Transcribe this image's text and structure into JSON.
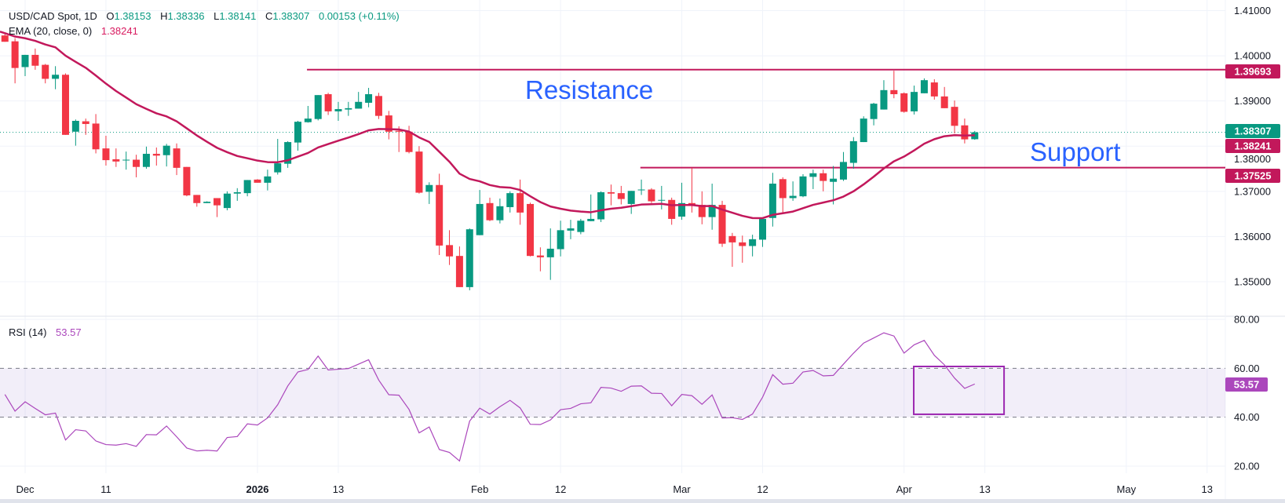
{
  "legend": {
    "symbol": "USD/CAD Spot, 1D",
    "o_label": "O",
    "o_value": "1.38153",
    "h_label": "H",
    "h_value": "1.38336",
    "l_label": "L",
    "l_value": "1.38141",
    "c_label": "C",
    "c_value": "1.38307",
    "change": "0.00153 (+0.11%)",
    "ema_label": "EMA (20, close, 0)",
    "ema_value": "1.38241",
    "rsi_label": "RSI (14)",
    "rsi_value": "53.57"
  },
  "annotations": {
    "resistance_text": "Resistance",
    "support_text": "Support"
  },
  "colors": {
    "up": "#089981",
    "down": "#f23645",
    "ema": "#c2185b",
    "rsi": "#ab47bc",
    "level": "#c2185b",
    "label_text": "#2962ff",
    "rsi_box": "#9c27b0",
    "grid": "#f0f3fa"
  },
  "chart_data": {
    "type": "candlestick",
    "title": "USD/CAD Spot, 1D",
    "price_axis": {
      "ylim": [
        1.341,
        1.4123
      ],
      "ticks": [
        "1.41000",
        "1.40000",
        "1.39000",
        "1.38000",
        "1.37000",
        "1.36000",
        "1.35000"
      ],
      "tick_values": [
        1.41,
        1.4,
        1.39,
        1.38,
        1.37,
        1.36,
        1.35
      ]
    },
    "rsi_axis": {
      "ylim": [
        18,
        81
      ],
      "ticks": [
        "80.00",
        "60.00",
        "40.00",
        "20.00"
      ],
      "tick_values": [
        80,
        60,
        40,
        20
      ],
      "band": [
        40,
        60
      ]
    },
    "x_axis_labels": [
      {
        "bar": 0,
        "text": "Dec"
      },
      {
        "bar": 8,
        "text": "11"
      },
      {
        "bar": 23,
        "text": "2026",
        "bold": true
      },
      {
        "bar": 31,
        "text": "13"
      },
      {
        "bar": 45,
        "text": "Feb"
      },
      {
        "bar": 53,
        "text": "12"
      },
      {
        "bar": 65,
        "text": "Mar"
      },
      {
        "bar": 73,
        "text": "12"
      },
      {
        "bar": 87,
        "text": "Apr"
      },
      {
        "bar": 95,
        "text": "13"
      },
      {
        "bar": 109,
        "text": "May"
      },
      {
        "bar": 117,
        "text": "13"
      }
    ],
    "first_bar": -2,
    "fields": [
      "date",
      "open",
      "high",
      "low",
      "close"
    ],
    "candles": [
      [
        "Nov 27",
        1.4045,
        1.4049,
        1.4031,
        1.4031
      ],
      [
        "Nov 28",
        1.4032,
        1.4039,
        1.3939,
        1.3973
      ],
      [
        "Dec 1",
        1.3975,
        1.4002,
        1.3955,
        1.4002
      ],
      [
        "Dec 2",
        1.4002,
        1.4016,
        1.3969,
        1.3978
      ],
      [
        "Dec 3",
        1.398,
        1.3982,
        1.3939,
        1.3949
      ],
      [
        "Dec 4",
        1.3949,
        1.3977,
        1.3926,
        1.3958
      ],
      [
        "Dec 5",
        1.3958,
        1.3961,
        1.3825,
        1.3825
      ],
      [
        "Dec 8",
        1.3832,
        1.3859,
        1.3801,
        1.3856
      ],
      [
        "Dec 9",
        1.3855,
        1.3861,
        1.3825,
        1.3849
      ],
      [
        "Dec 10",
        1.385,
        1.3871,
        1.3784,
        1.3793
      ],
      [
        "Dec 11",
        1.3795,
        1.3823,
        1.3757,
        1.3769
      ],
      [
        "Dec 12",
        1.3771,
        1.3795,
        1.3754,
        1.3766
      ],
      [
        "Dec 15",
        1.3769,
        1.3788,
        1.3748,
        1.377
      ],
      [
        "Dec 16",
        1.377,
        1.3781,
        1.3731,
        1.3754
      ],
      [
        "Dec 17",
        1.3754,
        1.3799,
        1.375,
        1.3783
      ],
      [
        "Dec 18",
        1.3783,
        1.3797,
        1.3757,
        1.3779
      ],
      [
        "Dec 19",
        1.378,
        1.3805,
        1.3755,
        1.3801
      ],
      [
        "Dec 22",
        1.3795,
        1.3806,
        1.3736,
        1.3752
      ],
      [
        "Dec 23",
        1.3754,
        1.3754,
        1.3689,
        1.3691
      ],
      [
        "Dec 24",
        1.3692,
        1.3692,
        1.3666,
        1.3674
      ],
      [
        "Dec 25",
        1.3674,
        1.3678,
        1.3674,
        1.3677
      ],
      [
        "Dec 26",
        1.3685,
        1.3685,
        1.3643,
        1.3669
      ],
      [
        "Dec 29",
        1.3663,
        1.37,
        1.3658,
        1.3695
      ],
      [
        "Dec 30",
        1.3695,
        1.3707,
        1.3679,
        1.3698
      ],
      [
        "Dec 31",
        1.3696,
        1.3725,
        1.3689,
        1.3725
      ],
      [
        "Jan 1",
        1.3726,
        1.3727,
        1.3719,
        1.3719
      ],
      [
        "Jan 2",
        1.3719,
        1.3748,
        1.3702,
        1.3733
      ],
      [
        "Jan 5",
        1.3742,
        1.3816,
        1.3737,
        1.3762
      ],
      [
        "Jan 6",
        1.3761,
        1.3811,
        1.3752,
        1.3809
      ],
      [
        "Jan 7",
        1.3808,
        1.3856,
        1.379,
        1.3854
      ],
      [
        "Jan 8",
        1.3853,
        1.3889,
        1.3852,
        1.3861
      ],
      [
        "Jan 9",
        1.386,
        1.3913,
        1.3857,
        1.3913
      ],
      [
        "Jan 12",
        1.3915,
        1.3918,
        1.3869,
        1.3877
      ],
      [
        "Jan 13",
        1.3877,
        1.3898,
        1.3856,
        1.3882
      ],
      [
        "Jan 14",
        1.3881,
        1.3898,
        1.3867,
        1.3884
      ],
      [
        "Jan 15",
        1.3883,
        1.392,
        1.3883,
        1.3898
      ],
      [
        "Jan 16",
        1.3896,
        1.3929,
        1.3886,
        1.3915
      ],
      [
        "Jan 19",
        1.3911,
        1.3918,
        1.386,
        1.3867
      ],
      [
        "Jan 20",
        1.3868,
        1.3878,
        1.3815,
        1.3832
      ],
      [
        "Jan 21",
        1.3834,
        1.3844,
        1.3787,
        1.3832
      ],
      [
        "Jan 22",
        1.3832,
        1.3845,
        1.3784,
        1.3787
      ],
      [
        "Jan 23",
        1.3788,
        1.38,
        1.3695,
        1.3697
      ],
      [
        "Jan 26",
        1.3699,
        1.372,
        1.3672,
        1.3714
      ],
      [
        "Jan 27",
        1.3714,
        1.3739,
        1.3559,
        1.358
      ],
      [
        "Jan 28",
        1.3581,
        1.3614,
        1.3537,
        1.3556
      ],
      [
        "Jan 29",
        1.3557,
        1.3578,
        1.3488,
        1.3488
      ],
      [
        "Jan 30",
        1.3488,
        1.3618,
        1.3481,
        1.3616
      ],
      [
        "Feb 2",
        1.3603,
        1.3703,
        1.3603,
        1.3672
      ],
      [
        "Feb 3",
        1.3674,
        1.3686,
        1.3634,
        1.3636
      ],
      [
        "Feb 4",
        1.3636,
        1.3684,
        1.3629,
        1.3667
      ],
      [
        "Feb 5",
        1.3665,
        1.37,
        1.3653,
        1.3696
      ],
      [
        "Feb 6",
        1.3696,
        1.3726,
        1.3626,
        1.3653
      ],
      [
        "Feb 9",
        1.3672,
        1.3675,
        1.3556,
        1.3557
      ],
      [
        "Feb 10",
        1.3558,
        1.3576,
        1.3523,
        1.3554
      ],
      [
        "Feb 11",
        1.3554,
        1.3618,
        1.3504,
        1.3573
      ],
      [
        "Feb 12",
        1.3572,
        1.3635,
        1.3556,
        1.3614
      ],
      [
        "Feb 13",
        1.3613,
        1.3637,
        1.3594,
        1.3618
      ],
      [
        "Feb 16",
        1.361,
        1.3639,
        1.3605,
        1.3635
      ],
      [
        "Feb 17",
        1.3634,
        1.3693,
        1.3634,
        1.3639
      ],
      [
        "Feb 18",
        1.3638,
        1.37,
        1.3632,
        1.3698
      ],
      [
        "Feb 19",
        1.3698,
        1.3715,
        1.3669,
        1.3695
      ],
      [
        "Feb 20",
        1.3696,
        1.3712,
        1.3671,
        1.3683
      ],
      [
        "Feb 23",
        1.3672,
        1.3701,
        1.365,
        1.3701
      ],
      [
        "Feb 24",
        1.3703,
        1.3726,
        1.3692,
        1.3704
      ],
      [
        "Feb 25",
        1.3704,
        1.3707,
        1.3674,
        1.3678
      ],
      [
        "Feb 26",
        1.368,
        1.3712,
        1.366,
        1.3681
      ],
      [
        "Feb 27",
        1.3681,
        1.3686,
        1.3626,
        1.3639
      ],
      [
        "Mar 2",
        1.3644,
        1.3719,
        1.3637,
        1.3674
      ],
      [
        "Mar 3",
        1.3674,
        1.3752,
        1.3653,
        1.367
      ],
      [
        "Mar 4",
        1.367,
        1.37,
        1.3627,
        1.3643
      ],
      [
        "Mar 5",
        1.3643,
        1.3717,
        1.3615,
        1.367
      ],
      [
        "Mar 6",
        1.367,
        1.3679,
        1.3577,
        1.3584
      ],
      [
        "Mar 9",
        1.3601,
        1.3608,
        1.3533,
        1.3587
      ],
      [
        "Mar 10",
        1.3587,
        1.3602,
        1.3542,
        1.3579
      ],
      [
        "Mar 11",
        1.3579,
        1.3604,
        1.3556,
        1.3594
      ],
      [
        "Mar 12",
        1.3593,
        1.3639,
        1.3577,
        1.3639
      ],
      [
        "Mar 13",
        1.3641,
        1.3741,
        1.3622,
        1.3717
      ],
      [
        "Mar 16",
        1.3727,
        1.3731,
        1.3653,
        1.3685
      ],
      [
        "Mar 17",
        1.3685,
        1.3722,
        1.3679,
        1.369
      ],
      [
        "Mar 18",
        1.3689,
        1.3738,
        1.3687,
        1.3733
      ],
      [
        "Mar 19",
        1.3732,
        1.3748,
        1.3705,
        1.374
      ],
      [
        "Mar 20",
        1.374,
        1.3748,
        1.37,
        1.3723
      ],
      [
        "Mar 23",
        1.3721,
        1.3756,
        1.3671,
        1.3728
      ],
      [
        "Mar 24",
        1.3726,
        1.3787,
        1.3723,
        1.3765
      ],
      [
        "Mar 25",
        1.3763,
        1.382,
        1.375,
        1.3811
      ],
      [
        "Mar 26",
        1.3809,
        1.3866,
        1.3809,
        1.3861
      ],
      [
        "Mar 27",
        1.386,
        1.3896,
        1.3846,
        1.3894
      ],
      [
        "Mar 30",
        1.3881,
        1.3946,
        1.3881,
        1.3924
      ],
      [
        "Mar 31",
        1.3924,
        1.3967,
        1.3906,
        1.3915
      ],
      [
        "Apr 1",
        1.3917,
        1.3919,
        1.3874,
        1.3876
      ],
      [
        "Apr 2",
        1.3877,
        1.3934,
        1.387,
        1.392
      ],
      [
        "Apr 3",
        1.3917,
        1.395,
        1.3917,
        1.3946
      ],
      [
        "Apr 6",
        1.3941,
        1.3948,
        1.3903,
        1.391
      ],
      [
        "Apr 7",
        1.391,
        1.3931,
        1.3884,
        1.3884
      ],
      [
        "Apr 8",
        1.3887,
        1.3901,
        1.3828,
        1.3845
      ],
      [
        "Apr 9",
        1.3846,
        1.3861,
        1.3806,
        1.3815
      ],
      [
        "Apr 10",
        1.38153,
        1.38336,
        1.38141,
        1.38307
      ]
    ],
    "ema": {
      "period": 20,
      "seed": 1.405,
      "last": 1.38241
    },
    "rsi": [
      49.3,
      42.5,
      46.3,
      43.6,
      41.0,
      41.7,
      30.7,
      34.9,
      34.4,
      30.3,
      28.8,
      28.6,
      29.2,
      28.1,
      32.9,
      32.8,
      36.4,
      32.0,
      27.4,
      26.2,
      26.5,
      26.2,
      31.7,
      32.1,
      37.3,
      36.8,
      39.7,
      45.1,
      52.8,
      58.5,
      59.5,
      65.0,
      59.3,
      59.6,
      59.9,
      61.7,
      63.5,
      55.2,
      49.2,
      49.0,
      43.2,
      33.6,
      36.0,
      26.8,
      25.6,
      22.1,
      38.4,
      43.7,
      41.3,
      44.3,
      46.9,
      43.8,
      37.1,
      37.0,
      38.9,
      43.1,
      43.6,
      45.5,
      45.9,
      52.2,
      51.9,
      50.6,
      52.7,
      52.8,
      49.8,
      49.7,
      44.7,
      49.3,
      48.8,
      45.3,
      49.1,
      39.7,
      39.8,
      39.1,
      41.3,
      48.2,
      57.4,
      53.5,
      53.9,
      58.5,
      59.1,
      56.9,
      57.1,
      61.7,
      66.2,
      70.3,
      72.4,
      74.5,
      73.2,
      66.2,
      69.6,
      71.4,
      65.3,
      61.4,
      56.0,
      51.8,
      53.57
    ],
    "levels": [
      {
        "name": "resistance",
        "price": 1.39693,
        "label": "1.39693",
        "start_bar": 27.9
      },
      {
        "name": "support",
        "price": 1.37525,
        "label": "1.37525",
        "start_bar": 60.9
      }
    ],
    "last_price": {
      "price": 1.38307,
      "label": "1.38307"
    },
    "ema_tag": {
      "price": 1.38241,
      "label": "1.38241"
    },
    "rsi_tag": {
      "value": 53.57,
      "label": "53.57"
    },
    "rsi_box": {
      "from_bar": 87.96,
      "to_bar": 96.9,
      "top": 60.75,
      "bottom": 41.2
    }
  }
}
